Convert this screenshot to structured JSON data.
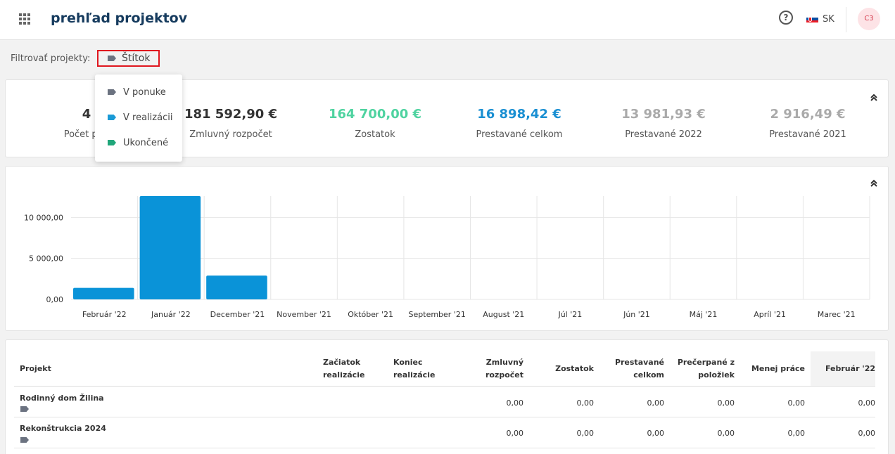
{
  "header": {
    "title": "prehľad projektov",
    "help_glyph": "?",
    "language": "SK",
    "avatar_initials": "C3"
  },
  "filter": {
    "label": "Filtrovať projekty:",
    "tag_label": "Štítok",
    "options": [
      {
        "label": "V ponuke",
        "color": "#6b7280"
      },
      {
        "label": "V realizácii",
        "color": "#1a9ad6"
      },
      {
        "label": "Ukončené",
        "color": "#20a67a"
      }
    ]
  },
  "summary": {
    "project_count_value": "4",
    "project_count_label": "Počet proj",
    "contract_budget_value": "181 592,90 €",
    "contract_budget_label": "Zmluvný rozpočet",
    "remainder_value": "164 700,00 €",
    "remainder_label": "Zostatok",
    "built_total_value": "16 898,42 €",
    "built_total_label": "Prestavané celkom",
    "built_2022_value": "13 981,93 €",
    "built_2022_label": "Prestavané 2022",
    "built_2021_value": "2 916,49 €",
    "built_2021_label": "Prestavané 2021"
  },
  "chart_data": {
    "type": "bar",
    "categories": [
      "Február '22",
      "Január '22",
      "December '21",
      "November '21",
      "Október '21",
      "September '21",
      "August '21",
      "Júl '21",
      "Jún '21",
      "Máj '21",
      "Apríl '21",
      "Marec '21"
    ],
    "values": [
      1400,
      12600,
      2900,
      0,
      0,
      0,
      0,
      0,
      0,
      0,
      0,
      0
    ],
    "yticks": [
      0,
      5000,
      10000
    ],
    "ytick_labels": [
      "0,00",
      "5 000,00",
      "10 000,00"
    ],
    "ylim": [
      0,
      12600
    ],
    "bar_color": "#0a93d8",
    "grid": true
  },
  "table": {
    "headers": {
      "project": "Projekt",
      "start": "Začiatok realizácie",
      "end": "Koniec realizácie",
      "budget": "Zmluvný rozpočet",
      "remainder": "Zostatok",
      "built": "Prestavané celkom",
      "overdrawn": "Prečerpané z položiek",
      "less_work": "Menej práce",
      "month": "Február '22"
    },
    "rows": [
      {
        "name": "Rodinný dom Žilina",
        "tag_color": "#6b7280",
        "budget": "0,00",
        "remainder": "0,00",
        "built": "0,00",
        "overdrawn": "0,00",
        "less_work": "0,00",
        "month": "0,00"
      },
      {
        "name": "Rekonštrukcia 2024",
        "tag_color": "#6b7280",
        "budget": "0,00",
        "remainder": "0,00",
        "built": "0,00",
        "overdrawn": "0,00",
        "less_work": "0,00",
        "month": "0,00"
      }
    ]
  }
}
